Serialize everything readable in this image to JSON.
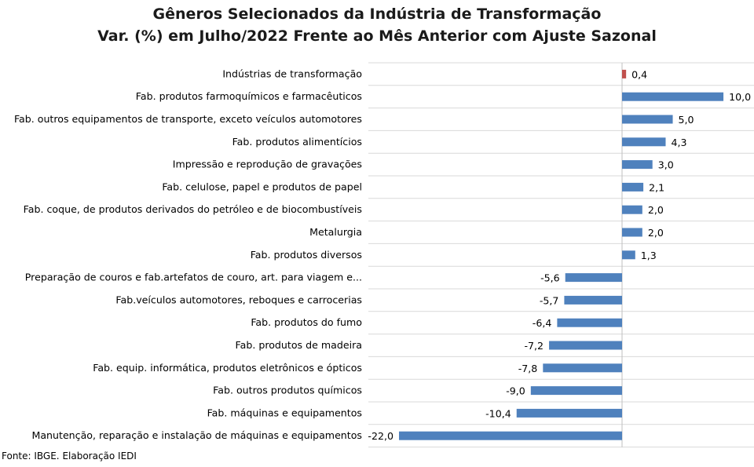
{
  "chart_data": {
    "type": "bar",
    "orientation": "horizontal",
    "title": "Gêneros Selecionados da Indústria de Transformação",
    "subtitle": "Var. (%) em Julho/2022 Frente ao Mês Anterior com Ajuste Sazonal",
    "categories": [
      "Indústrias de transformação",
      "Fab. produtos farmoquímicos e farmacêuticos",
      "Fab. outros equipamentos de transporte, exceto veículos automotores",
      "Fab. produtos alimentícios",
      "Impressão e reprodução de gravações",
      "Fab. celulose, papel e produtos de papel",
      "Fab. coque, de produtos derivados do petróleo e de biocombustíveis",
      "Metalurgia",
      "Fab. produtos diversos",
      "Preparação de couros e fab.artefatos de couro, art. para viagem e...",
      "Fab.veículos automotores, reboques e carrocerias",
      "Fab. produtos do fumo",
      "Fab. produtos de madeira",
      "Fab. equip. informática, produtos eletrônicos e ópticos",
      "Fab. outros produtos químicos",
      "Fab. máquinas e equipamentos",
      "Manutenção, reparação e instalação de máquinas e equipamentos"
    ],
    "values": [
      0.4,
      10.0,
      5.0,
      4.3,
      3.0,
      2.1,
      2.0,
      2.0,
      1.3,
      -5.6,
      -5.7,
      -6.4,
      -7.2,
      -7.8,
      -9.0,
      -10.4,
      -22.0
    ],
    "value_labels": [
      "0,4",
      "10,0",
      "5,0",
      "4,3",
      "3,0",
      "2,1",
      "2,0",
      "2,0",
      "1,3",
      "-5,6",
      "-5,7",
      "-6,4",
      "-7,2",
      "-7,8",
      "-9,0",
      "-10,4",
      "-22,0"
    ],
    "highlight_index": 0,
    "colors": {
      "bar": "#4f81bd",
      "highlight": "#c0504d",
      "grid": "#d9d9d9",
      "axis": "#bfbfbf"
    },
    "grid": true,
    "xlim": [
      -22.0,
      10.0
    ]
  },
  "source": "Fonte: IBGE. Elaboração IEDI"
}
